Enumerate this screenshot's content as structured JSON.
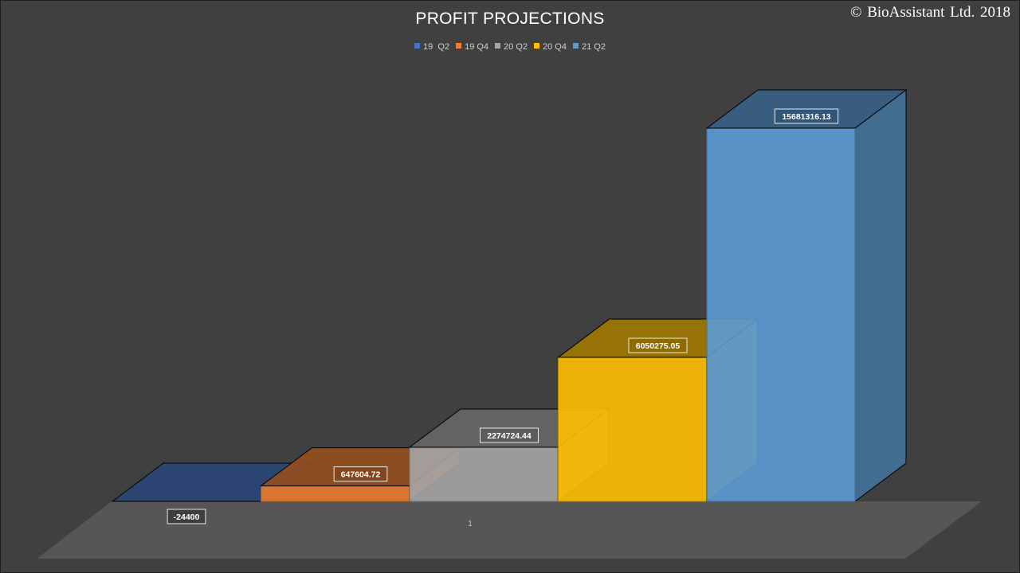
{
  "copyright": "© BioAssistant Ltd. 2018",
  "chart_data": {
    "type": "bar",
    "title": "PROFIT PROJECTIONS",
    "categories": [
      "1"
    ],
    "legend_position": "top",
    "grid": false,
    "series": [
      {
        "name": "19  Q2",
        "values": [
          -24400
        ],
        "label": "-24400",
        "color": "#4472C4"
      },
      {
        "name": "19 Q4",
        "values": [
          647604.72
        ],
        "label": "647604.72",
        "color": "#ED7D31"
      },
      {
        "name": "20 Q2",
        "values": [
          2274724.44
        ],
        "label": "2274724.44",
        "color": "#A5A5A5"
      },
      {
        "name": "20 Q4",
        "values": [
          6050275.05
        ],
        "label": "6050275.05",
        "color": "#FFC000"
      },
      {
        "name": "21 Q2",
        "values": [
          15681316.13
        ],
        "label": "15681316.13",
        "color": "#5B9BD5"
      }
    ]
  }
}
